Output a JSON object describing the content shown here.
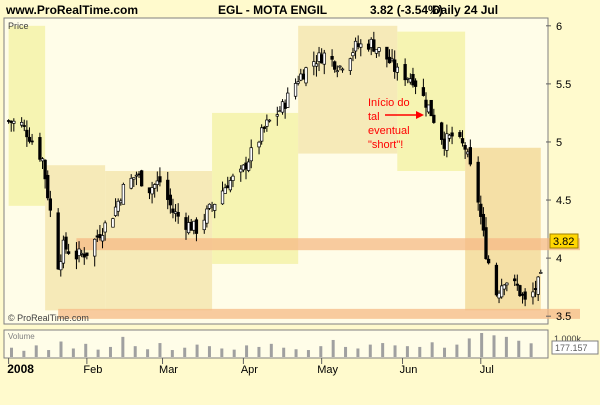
{
  "header": {
    "site": "www.ProRealTime.com",
    "ticker": "EGL - MOTA ENGIL",
    "quote": "3.82 (-3.54%)",
    "period": "Daily  24 Jul"
  },
  "price_panel": {
    "label": "Price",
    "copyright": "© ProRealTime.com"
  },
  "volume_panel": {
    "label": "Volume",
    "axis_label": "1.000k",
    "value_box": "177.157"
  },
  "annotation": {
    "lines": [
      "Início do",
      "tal",
      "eventual",
      "\"short\"!"
    ],
    "color": "#ff0000"
  },
  "last_price_label": "3.82",
  "colors": {
    "background": "#fffacd",
    "panel": "#fffde8",
    "band_light": "#f3f0a0",
    "band_mid": "#f3e3a8",
    "band_dark": "#f1d590",
    "support_line": "#f5b986",
    "candle": "#000000",
    "last_price_box": "#ffd700"
  },
  "chart_data": [
    {
      "type": "candlestick",
      "title": "EGL - MOTA ENGIL",
      "ylabel": "Price",
      "ylim": [
        3.45,
        6.05
      ],
      "yticks": [
        3.5,
        4,
        4.5,
        5,
        5.5,
        6
      ],
      "x_tick_labels": [
        "2008",
        "Feb",
        "Mar",
        "Apr",
        "May",
        "Jun",
        "Jul"
      ],
      "horizontal_levels": [
        3.52,
        4.12
      ],
      "last_close": 3.82,
      "close_path": [
        [
          "2008-01-02",
          5.18
        ],
        [
          "2008-01-07",
          5.15
        ],
        [
          "2008-01-10",
          5.05
        ],
        [
          "2008-01-15",
          4.85
        ],
        [
          "2008-01-18",
          4.4
        ],
        [
          "2008-01-21",
          3.95
        ],
        [
          "2008-01-23",
          4.1
        ],
        [
          "2008-01-28",
          4.02
        ],
        [
          "2008-02-01",
          4.05
        ],
        [
          "2008-02-06",
          4.22
        ],
        [
          "2008-02-11",
          4.38
        ],
        [
          "2008-02-15",
          4.6
        ],
        [
          "2008-02-20",
          4.72
        ],
        [
          "2008-02-25",
          4.6
        ],
        [
          "2008-02-29",
          4.66
        ],
        [
          "2008-03-05",
          4.4
        ],
        [
          "2008-03-10",
          4.3
        ],
        [
          "2008-03-14",
          4.25
        ],
        [
          "2008-03-20",
          4.45
        ],
        [
          "2008-03-26",
          4.65
        ],
        [
          "2008-03-31",
          4.72
        ],
        [
          "2008-04-04",
          4.9
        ],
        [
          "2008-04-10",
          5.15
        ],
        [
          "2008-04-16",
          5.3
        ],
        [
          "2008-04-22",
          5.55
        ],
        [
          "2008-04-28",
          5.7
        ],
        [
          "2008-05-02",
          5.75
        ],
        [
          "2008-05-08",
          5.65
        ],
        [
          "2008-05-14",
          5.82
        ],
        [
          "2008-05-20",
          5.85
        ],
        [
          "2008-05-26",
          5.72
        ],
        [
          "2008-05-30",
          5.6
        ],
        [
          "2008-06-05",
          5.55
        ],
        [
          "2008-06-11",
          5.3
        ],
        [
          "2008-06-17",
          5.0
        ],
        [
          "2008-06-20",
          5.05
        ],
        [
          "2008-06-25",
          4.95
        ],
        [
          "2008-06-30",
          4.5
        ],
        [
          "2008-07-03",
          4.05
        ],
        [
          "2008-07-07",
          3.7
        ],
        [
          "2008-07-10",
          3.82
        ],
        [
          "2008-07-15",
          3.75
        ],
        [
          "2008-07-18",
          3.62
        ],
        [
          "2008-07-21",
          3.7
        ],
        [
          "2008-07-24",
          3.82
        ]
      ],
      "volume": {
        "ylabel": "Volume",
        "values": [
          120,
          80,
          150,
          90,
          200,
          110,
          170,
          95,
          130,
          260,
          140,
          100,
          180,
          90,
          120,
          160,
          140,
          110,
          95,
          150,
          130,
          170,
          120,
          100,
          90,
          140,
          220,
          130,
          110,
          160,
          180,
          150,
          140,
          130,
          190,
          120,
          160,
          240,
          310,
          280,
          260,
          210,
          177
        ]
      }
    }
  ]
}
